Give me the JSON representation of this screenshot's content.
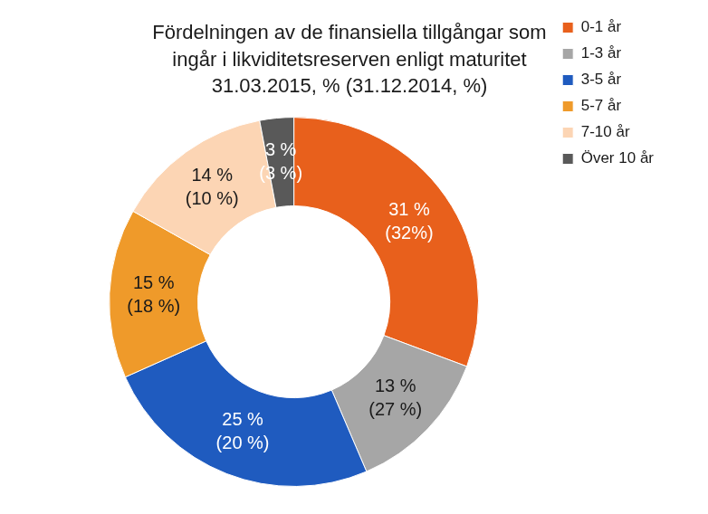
{
  "chart_data": {
    "type": "doughnut",
    "title": [
      "Fördelningen av de finansiella tillgångar som",
      "ingår i likviditetsreserven enligt maturitet",
      "31.03.2015, % (31.12.2014, %)"
    ],
    "categories": [
      "0-1 år",
      "1-3 år",
      "3-5 år",
      "5-7 år",
      "7-10 år",
      "Över 10 år"
    ],
    "values": [
      31,
      13,
      25,
      15,
      14,
      3
    ],
    "value_labels": [
      "31 %",
      "13 %",
      "25 %",
      "15 %",
      "14 %",
      "3 %"
    ],
    "previous_value_labels": [
      "(32%)",
      "(27 %)",
      "(20 %)",
      "(18 %)",
      "(10 %)",
      "(3 %)"
    ],
    "colors": [
      "#e8601c",
      "#a6a6a6",
      "#1f5bbf",
      "#ef9a2a",
      "#fcd5b4",
      "#595959"
    ],
    "data_labels": true,
    "legend": "right"
  }
}
